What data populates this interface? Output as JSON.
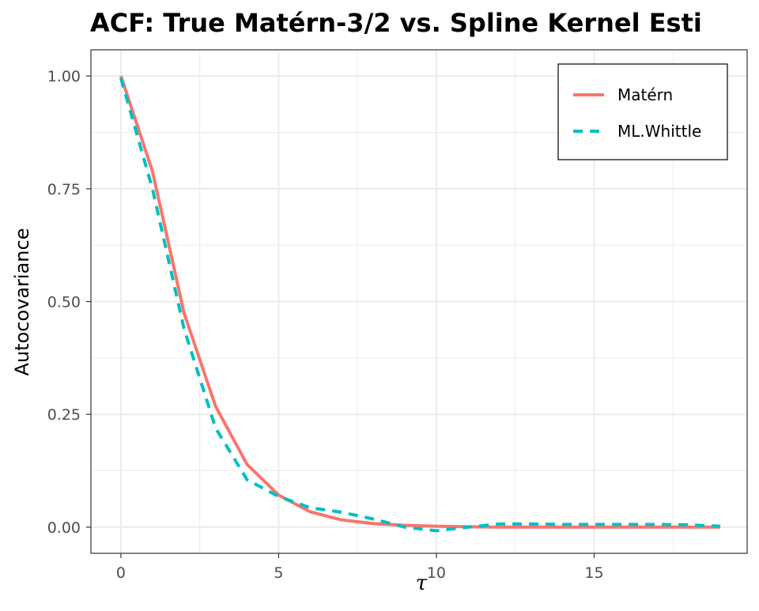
{
  "chart_data": {
    "type": "line",
    "title": "ACF: True Matérn-3/2 vs. Spline Kernel Esti",
    "xlabel": "τ",
    "ylabel": "Autocovariance",
    "xlim": [
      -0.95,
      19.85
    ],
    "ylim": [
      -0.058,
      1.058
    ],
    "x_ticks": [
      0,
      5,
      10,
      15
    ],
    "x_tick_labels": [
      "0",
      "5",
      "10",
      "15"
    ],
    "y_ticks": [
      0,
      0.25,
      0.5,
      0.75,
      1.0
    ],
    "y_tick_labels": [
      "0.00",
      "0.25",
      "0.50",
      "0.75",
      "1.00"
    ],
    "grid": true,
    "legend_position": "top-right",
    "series": [
      {
        "name": "Matérn",
        "color": "#F8766D",
        "dash": "solid",
        "x": [
          0,
          1,
          2,
          3,
          4,
          5,
          6,
          7,
          8,
          9,
          10,
          11,
          12,
          13,
          14,
          15,
          16,
          17,
          18,
          19
        ],
        "values": [
          1.0,
          0.789,
          0.475,
          0.268,
          0.139,
          0.071,
          0.034,
          0.016,
          0.008,
          0.004,
          0.002,
          0.001,
          0.0,
          0.0,
          0.0,
          0.0,
          0.0,
          0.0,
          0.0,
          0.0
        ]
      },
      {
        "name": "ML.Whittle",
        "color": "#00BFC4",
        "dash": "dashed",
        "x": [
          0,
          1,
          2,
          3,
          4,
          5,
          6,
          7,
          8,
          9,
          10,
          11,
          12,
          13,
          14,
          15,
          16,
          17,
          18,
          19
        ],
        "values": [
          0.995,
          0.75,
          0.44,
          0.22,
          0.105,
          0.068,
          0.043,
          0.033,
          0.018,
          0.0,
          -0.008,
          0.0,
          0.007,
          0.007,
          0.006,
          0.006,
          0.006,
          0.006,
          0.005,
          0.002
        ]
      }
    ]
  }
}
